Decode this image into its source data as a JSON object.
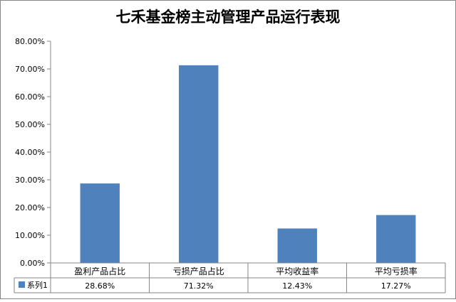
{
  "chart_data": {
    "type": "bar",
    "title": "七禾基金榜主动管理产品运行表现",
    "categories": [
      "盈利产品占比",
      "亏损产品占比",
      "平均收益率",
      "平均亏损率"
    ],
    "series": [
      {
        "name": "系列1",
        "values": [
          28.68,
          71.32,
          12.43,
          17.27
        ],
        "color": "#4F81BD"
      }
    ],
    "data_labels": [
      "28.68%",
      "71.32%",
      "12.43%",
      "17.27%"
    ],
    "y_ticks": [
      "0.00%",
      "10.00%",
      "20.00%",
      "30.00%",
      "40.00%",
      "50.00%",
      "60.00%",
      "70.00%",
      "80.00%"
    ],
    "ylim": [
      0,
      80
    ],
    "y_unit": "%",
    "xlabel": "",
    "ylabel": "",
    "grid": false,
    "legend": "data-table",
    "colors": {
      "bar": "#4F81BD",
      "axis": "#868686",
      "border": "#868686"
    }
  }
}
